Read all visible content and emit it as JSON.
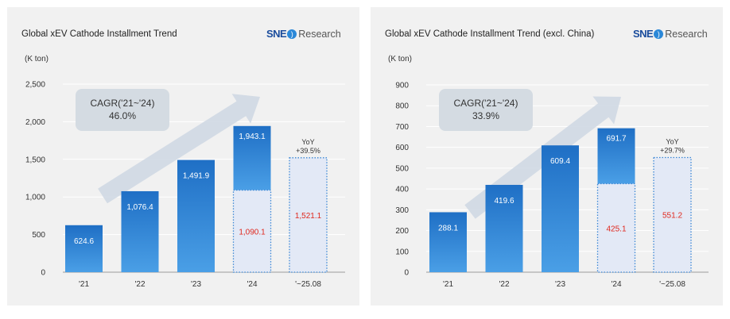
{
  "logo": {
    "brand": "SNE",
    "suffix": "Research"
  },
  "chart_data": [
    {
      "type": "bar",
      "title": "Global xEV Cathode Installment Trend",
      "unit": "(K ton)",
      "categories": [
        "'21",
        "'22",
        "'23",
        "'24",
        "'~25.08"
      ],
      "values": [
        624.6,
        1076.4,
        1491.9,
        1943.1,
        1521.1
      ],
      "value_labels": [
        "624.6",
        "1,076.4",
        "1,491.9",
        "1,943.1",
        "1,521.1"
      ],
      "sub_value": {
        "index": 3,
        "value": 1090.1,
        "label": "1,090.1"
      },
      "ylim": [
        0,
        2500
      ],
      "yticks": [
        0,
        500,
        1000,
        1500,
        2000,
        2500
      ],
      "ytick_labels": [
        "0",
        "500",
        "1,000",
        "1,500",
        "2,000",
        "2,500"
      ],
      "cagr": {
        "label": "CAGR('21~'24)",
        "value": "46.0%"
      },
      "yoy": {
        "label": "YoY",
        "value": "+39.5%"
      },
      "grid": true,
      "colors": {
        "bar": "#1f6fc5",
        "bar_light": "#4a9fe6",
        "dotted_fill": "#e3e9f6",
        "dotted_stroke": "#3a86d4",
        "red": "#e0281e",
        "arrow": "#cfd8e3",
        "cagr_box": "#d4dbe2"
      }
    },
    {
      "type": "bar",
      "title": "Global xEV Cathode Installment Trend (excl. China)",
      "unit": "(K ton)",
      "categories": [
        "'21",
        "'22",
        "'23",
        "'24",
        "'~25.08"
      ],
      "values": [
        288.1,
        419.6,
        609.4,
        691.7,
        551.2
      ],
      "value_labels": [
        "288.1",
        "419.6",
        "609.4",
        "691.7",
        "551.2"
      ],
      "sub_value": {
        "index": 3,
        "value": 425.1,
        "label": "425.1"
      },
      "ylim": [
        0,
        900
      ],
      "yticks": [
        0,
        100,
        200,
        300,
        400,
        500,
        600,
        700,
        800,
        900
      ],
      "ytick_labels": [
        "0",
        "100",
        "200",
        "300",
        "400",
        "500",
        "600",
        "700",
        "800",
        "900"
      ],
      "cagr": {
        "label": "CAGR('21~'24)",
        "value": "33.9%"
      },
      "yoy": {
        "label": "YoY",
        "value": "+29.7%"
      },
      "grid": true,
      "colors": {
        "bar": "#1f6fc5",
        "bar_light": "#4a9fe6",
        "dotted_fill": "#e3e9f6",
        "dotted_stroke": "#3a86d4",
        "red": "#e0281e",
        "arrow": "#cfd8e3",
        "cagr_box": "#d4dbe2"
      }
    }
  ]
}
